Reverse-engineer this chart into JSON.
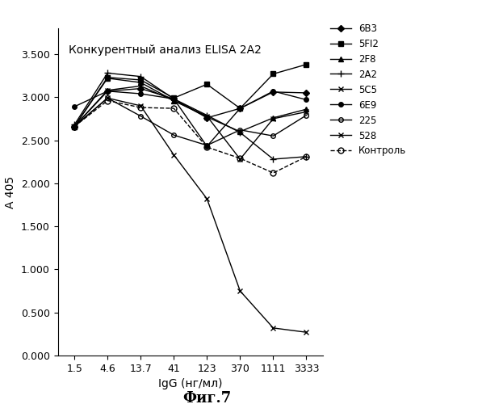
{
  "x_labels": [
    "1.5",
    "4.6",
    "13.7",
    "41",
    "123",
    "370",
    "1111",
    "3333"
  ],
  "x_positions": [
    0,
    1,
    2,
    3,
    4,
    5,
    6,
    7
  ],
  "title": "Конкурентный анализ ELISA 2A2",
  "xlabel": "IgG (нг/мл)",
  "ylabel": "А 405",
  "ylim": [
    0.0,
    3.8
  ],
  "yticks": [
    0.0,
    0.5,
    1.0,
    1.5,
    2.0,
    2.5,
    3.0,
    3.5
  ],
  "series": {
    "6B3": {
      "values": [
        2.66,
        3.07,
        3.1,
        2.98,
        2.76,
        2.87,
        3.06,
        3.05
      ]
    },
    "5FI2": {
      "values": [
        2.66,
        3.23,
        3.2,
        2.99,
        3.15,
        2.87,
        3.27,
        3.38
      ]
    },
    "2F8": {
      "values": [
        2.66,
        3.22,
        3.17,
        2.96,
        2.77,
        2.6,
        2.76,
        2.86
      ]
    },
    "2A2": {
      "values": [
        2.68,
        3.28,
        3.24,
        2.98,
        2.79,
        2.59,
        2.28,
        2.31
      ]
    },
    "5C5": {
      "values": [
        2.66,
        3.08,
        3.13,
        2.96,
        2.78,
        2.28,
        2.75,
        2.83
      ]
    },
    "6E9": {
      "values": [
        2.89,
        3.07,
        3.04,
        2.98,
        2.43,
        2.87,
        3.07,
        2.97
      ]
    },
    "225": {
      "values": [
        2.66,
        2.99,
        2.78,
        2.56,
        2.44,
        2.62,
        2.55,
        2.79
      ]
    },
    "528": {
      "values": [
        2.66,
        2.99,
        2.9,
        2.33,
        1.82,
        0.75,
        0.32,
        0.27
      ]
    },
    "Контроль": {
      "values": [
        2.66,
        2.96,
        2.88,
        2.87,
        2.42,
        2.29,
        2.12,
        2.31
      ]
    }
  },
  "legend_order": [
    "6B3",
    "5FI2",
    "2F8",
    "2A2",
    "5C5",
    "6E9",
    "225",
    "528",
    "Контроль"
  ],
  "series_styles": {
    "6B3": {
      "marker": "D",
      "linestyle": "-",
      "fillstyle": "full",
      "ms": 4
    },
    "5FI2": {
      "marker": "s",
      "linestyle": "-",
      "fillstyle": "full",
      "ms": 4
    },
    "2F8": {
      "marker": "^",
      "linestyle": "-",
      "fillstyle": "full",
      "ms": 4
    },
    "2A2": {
      "marker": "+",
      "linestyle": "-",
      "fillstyle": "full",
      "ms": 6
    },
    "5C5": {
      "marker": "x",
      "linestyle": "-",
      "fillstyle": "full",
      "ms": 5
    },
    "6E9": {
      "marker": "o",
      "linestyle": "-",
      "fillstyle": "full",
      "ms": 4
    },
    "225": {
      "marker": "o",
      "linestyle": "-",
      "fillstyle": "none",
      "ms": 4
    },
    "528": {
      "marker": "x",
      "linestyle": "-",
      "fillstyle": "full",
      "ms": 5
    },
    "Контроль": {
      "marker": "o",
      "linestyle": "--",
      "fillstyle": "none",
      "ms": 5
    }
  },
  "fig_width": 5.97,
  "fig_height": 5.0,
  "dpi": 100
}
